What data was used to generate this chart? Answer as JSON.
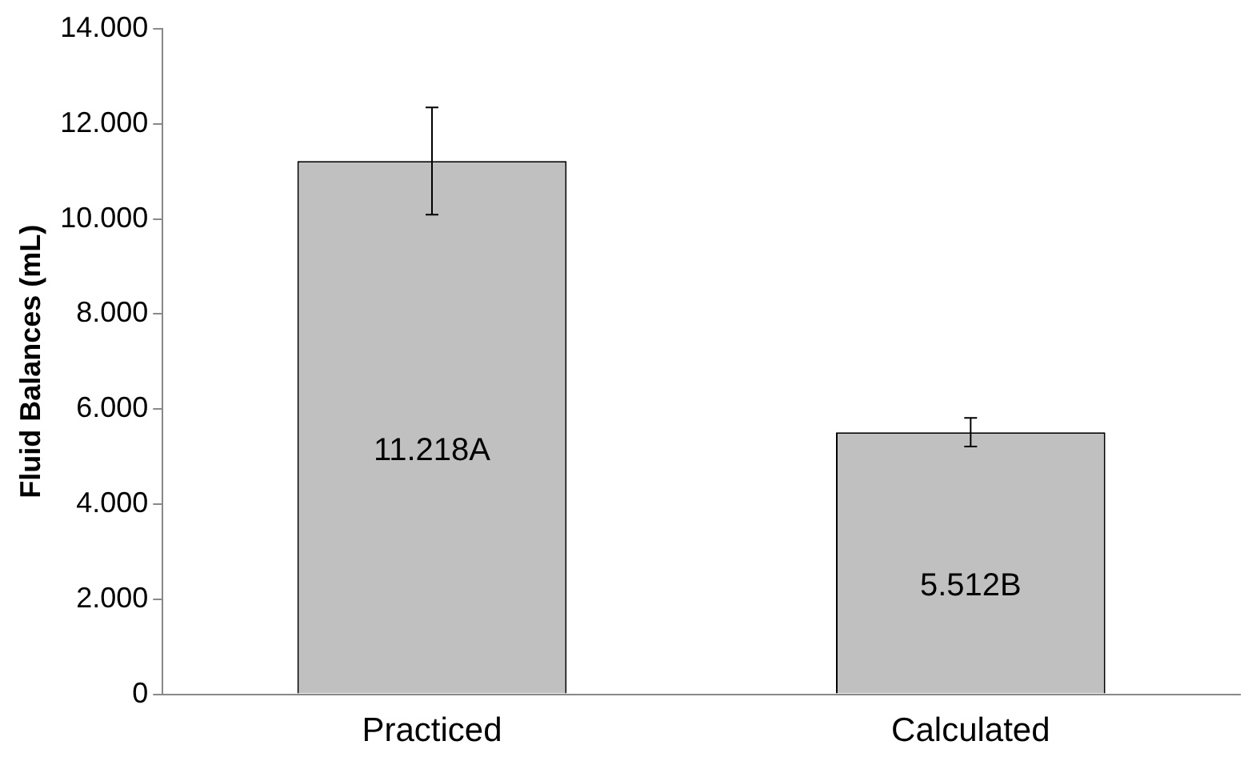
{
  "chart_data": {
    "type": "bar",
    "ylabel": "Fluid Balances (mL)",
    "categories": [
      "Practiced",
      "Calculated"
    ],
    "values": [
      11218,
      5512
    ],
    "color": "#c0c0c0",
    "errors": [
      1130,
      300
    ],
    "value_labels": [
      "11.218A",
      "5.512B"
    ],
    "ylim": [
      0,
      14000
    ],
    "yticks": [
      0,
      {
        "value": 2000,
        "label": "2.000"
      },
      {
        "value": 4000,
        "label": "4.000"
      },
      {
        "value": 6000,
        "label": "6.000"
      },
      {
        "value": 8000,
        "label": "8.000"
      },
      {
        "value": 10000,
        "label": "10.000"
      },
      {
        "value": 12000,
        "label": "12.000"
      },
      {
        "value": 14000,
        "label": "14.000"
      }
    ],
    "grid": false,
    "legend": false
  }
}
